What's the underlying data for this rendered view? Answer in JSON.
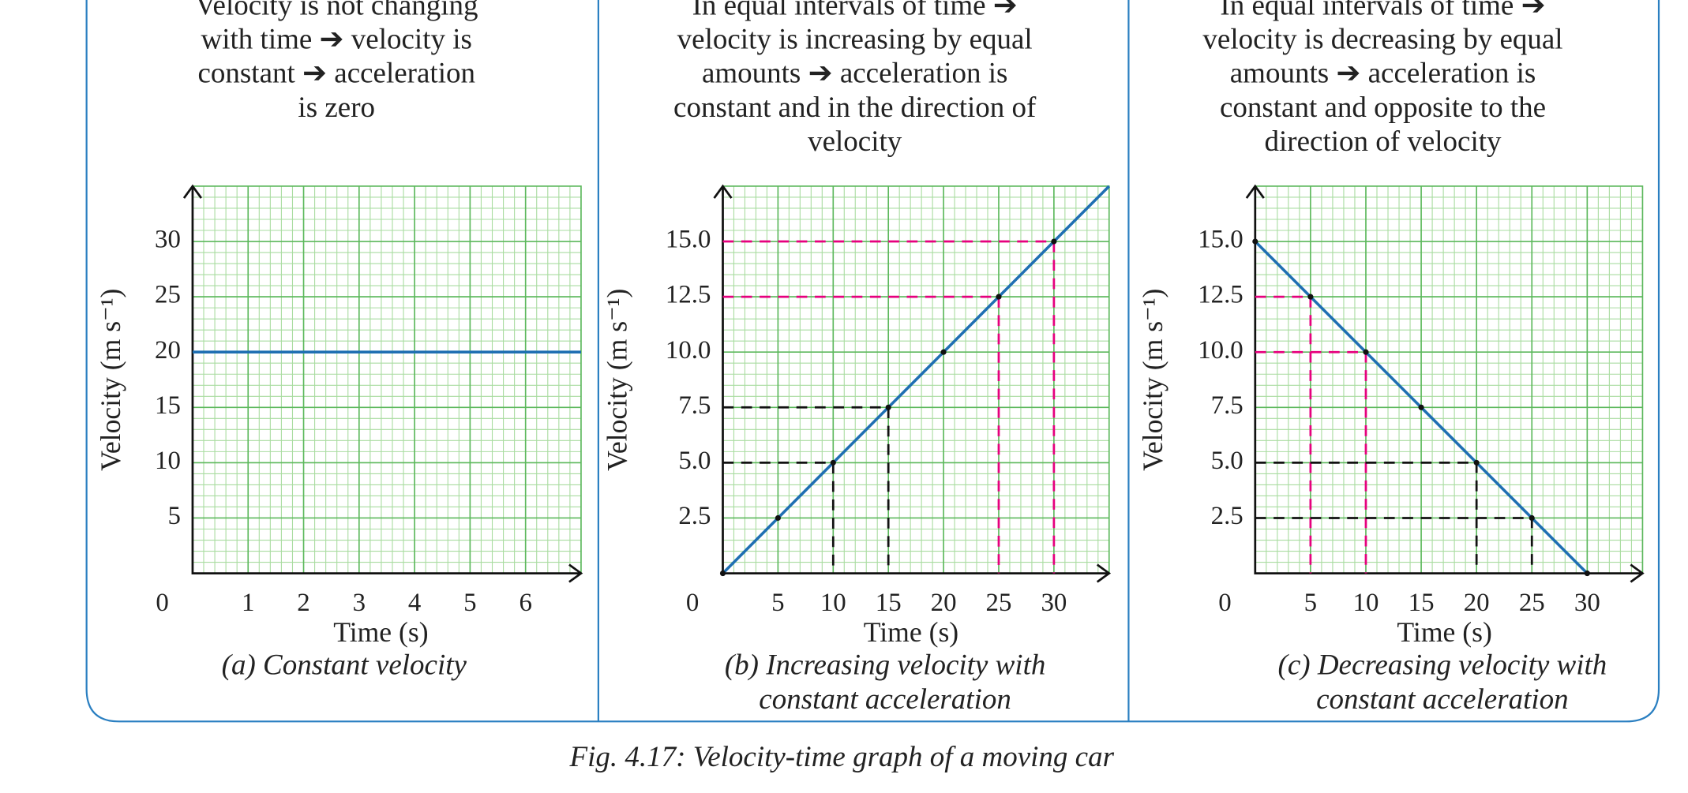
{
  "chart_data": [
    {
      "type": "line",
      "description": [
        "Velocity is not changing",
        "with time ➔ velocity is",
        "constant ➔ acceleration",
        "is zero"
      ],
      "caption": [
        "(a) Constant velocity"
      ],
      "xlabel": "Time (s)",
      "ylabel": "Velocity (m s⁻¹)",
      "xlim": [
        0,
        7
      ],
      "ylim": [
        0,
        35
      ],
      "xticks": [
        0,
        1,
        2,
        3,
        4,
        5,
        6
      ],
      "yticks": [
        5,
        10,
        15,
        20,
        25,
        30
      ],
      "grid": true,
      "minor_grid": 5,
      "markers": false,
      "series": [
        {
          "color": "#1f6fb2",
          "x": [
            0,
            7
          ],
          "values": [
            20,
            20
          ]
        }
      ],
      "guides": []
    },
    {
      "type": "line",
      "description": [
        "In equal intervals of time ➔",
        "velocity is increasing by equal",
        "amounts ➔ acceleration is",
        "constant and in the direction of",
        "velocity"
      ],
      "caption": [
        "(b) Increasing velocity with",
        "constant acceleration"
      ],
      "xlabel": "Time (s)",
      "ylabel": "Velocity (m s⁻¹)",
      "xlim": [
        0,
        35
      ],
      "ylim": [
        0,
        17.5
      ],
      "xticks": [
        0,
        5,
        10,
        15,
        20,
        25,
        30
      ],
      "yticks": [
        2.5,
        {
          "value": 5,
          "label": "5.0"
        },
        7.5,
        {
          "value": 10,
          "label": "10.0"
        },
        12.5,
        {
          "value": 15,
          "label": "15.0"
        }
      ],
      "grid": true,
      "minor_grid": 5,
      "markers": true,
      "series": [
        {
          "color": "#1f6fb2",
          "x": [
            0,
            5,
            10,
            15,
            20,
            25,
            30,
            35
          ],
          "values": [
            0,
            2.5,
            5,
            7.5,
            10,
            12.5,
            15,
            17.5
          ]
        }
      ],
      "guides": [
        {
          "x": 10,
          "y": 5,
          "color": "#111111"
        },
        {
          "x": 15,
          "y": 7.5,
          "color": "#111111"
        },
        {
          "x": 25,
          "y": 12.5,
          "color": "#e6007e"
        },
        {
          "x": 30,
          "y": 15,
          "color": "#e6007e"
        }
      ]
    },
    {
      "type": "line",
      "description": [
        "In equal intervals of time ➔",
        "velocity is decreasing by equal",
        "amounts ➔ acceleration is",
        "constant and opposite to the",
        "direction of velocity"
      ],
      "caption": [
        "(c) Decreasing velocity with",
        "constant acceleration"
      ],
      "xlabel": "Time (s)",
      "ylabel": "Velocity (m s⁻¹)",
      "xlim": [
        0,
        35
      ],
      "ylim": [
        0,
        17.5
      ],
      "xticks": [
        0,
        5,
        10,
        15,
        20,
        25,
        30
      ],
      "yticks": [
        2.5,
        {
          "value": 5,
          "label": "5.0"
        },
        7.5,
        {
          "value": 10,
          "label": "10.0"
        },
        12.5,
        {
          "value": 15,
          "label": "15.0"
        }
      ],
      "grid": true,
      "minor_grid": 5,
      "markers": true,
      "series": [
        {
          "color": "#1f6fb2",
          "x": [
            0,
            5,
            10,
            15,
            20,
            25,
            30
          ],
          "values": [
            15,
            12.5,
            10,
            7.5,
            5,
            2.5,
            0
          ]
        }
      ],
      "guides": [
        {
          "x": 5,
          "y": 12.5,
          "color": "#e6007e"
        },
        {
          "x": 10,
          "y": 10,
          "color": "#e6007e"
        },
        {
          "x": 20,
          "y": 5,
          "color": "#111111"
        },
        {
          "x": 25,
          "y": 2.5,
          "color": "#111111"
        }
      ]
    }
  ],
  "figure_caption": "Fig. 4.17: Velocity-time graph of a moving car"
}
